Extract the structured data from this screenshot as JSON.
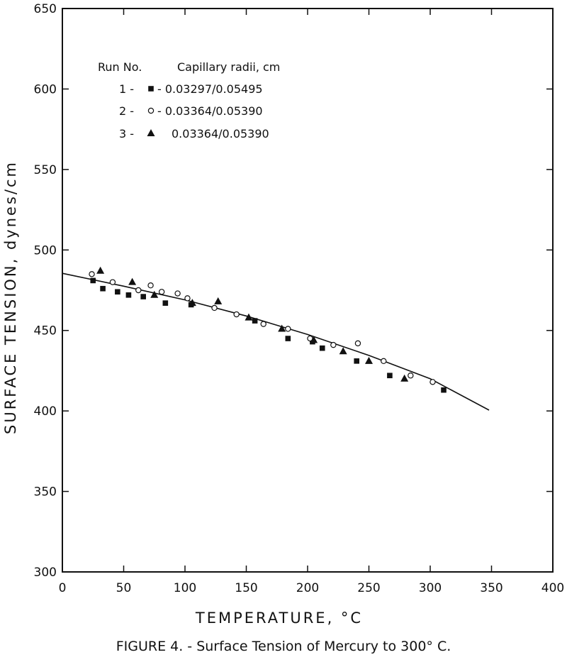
{
  "chart_data": {
    "type": "scatter",
    "caption": "FIGURE 4. - Surface Tension of Mercury to 300° C.",
    "xlabel": "TEMPERATURE, °C",
    "ylabel": "SURFACE  TENSION, dynes/cm",
    "xlim": [
      0,
      400
    ],
    "ylim": [
      300,
      650
    ],
    "x_ticks": [
      "0",
      "50",
      "100",
      "150",
      "200",
      "250",
      "300",
      "350",
      "400"
    ],
    "y_ticks": [
      "300",
      "350",
      "400",
      "450",
      "500",
      "550",
      "600",
      "650"
    ],
    "grid": false,
    "legend": {
      "placement": "top-left",
      "header_run": "Run No.",
      "header_radii": "Capillary radii, cm",
      "entries": [
        {
          "run": "1 -",
          "marker": "square",
          "text": "- 0.03297/0.05495"
        },
        {
          "run": "2 -",
          "marker": "circle",
          "text": "- 0.03364/0.05390"
        },
        {
          "run": "3 -",
          "marker": "triangle",
          "text": "0.03364/0.05390"
        }
      ]
    },
    "series": [
      {
        "name": "1",
        "marker": "square",
        "x": [
          25,
          33,
          45,
          54,
          66,
          84,
          105,
          157,
          184,
          204,
          212,
          240,
          267,
          311
        ],
        "y": [
          481,
          476,
          474,
          472,
          471,
          467,
          466,
          456,
          445,
          443,
          439,
          431,
          422,
          413
        ]
      },
      {
        "name": "2",
        "marker": "circle",
        "x": [
          24,
          41,
          62,
          72,
          81,
          94,
          102,
          124,
          142,
          164,
          184,
          202,
          221,
          241,
          262,
          284,
          302
        ],
        "y": [
          485,
          480,
          475,
          478,
          474,
          473,
          470,
          464,
          460,
          454,
          451,
          445,
          441,
          442,
          431,
          422,
          418
        ]
      },
      {
        "name": "3",
        "marker": "triangle",
        "x": [
          31,
          57,
          75,
          106,
          127,
          152,
          179,
          205,
          229,
          250,
          279
        ],
        "y": [
          487,
          480,
          472,
          467,
          468,
          458,
          451,
          444,
          437,
          431,
          420
        ]
      }
    ],
    "fit_line": {
      "x": [
        0,
        50,
        100,
        150,
        200,
        250,
        300,
        348
      ],
      "y": [
        485.5,
        477.5,
        469,
        459,
        447.5,
        434.5,
        420,
        400.5
      ]
    }
  }
}
